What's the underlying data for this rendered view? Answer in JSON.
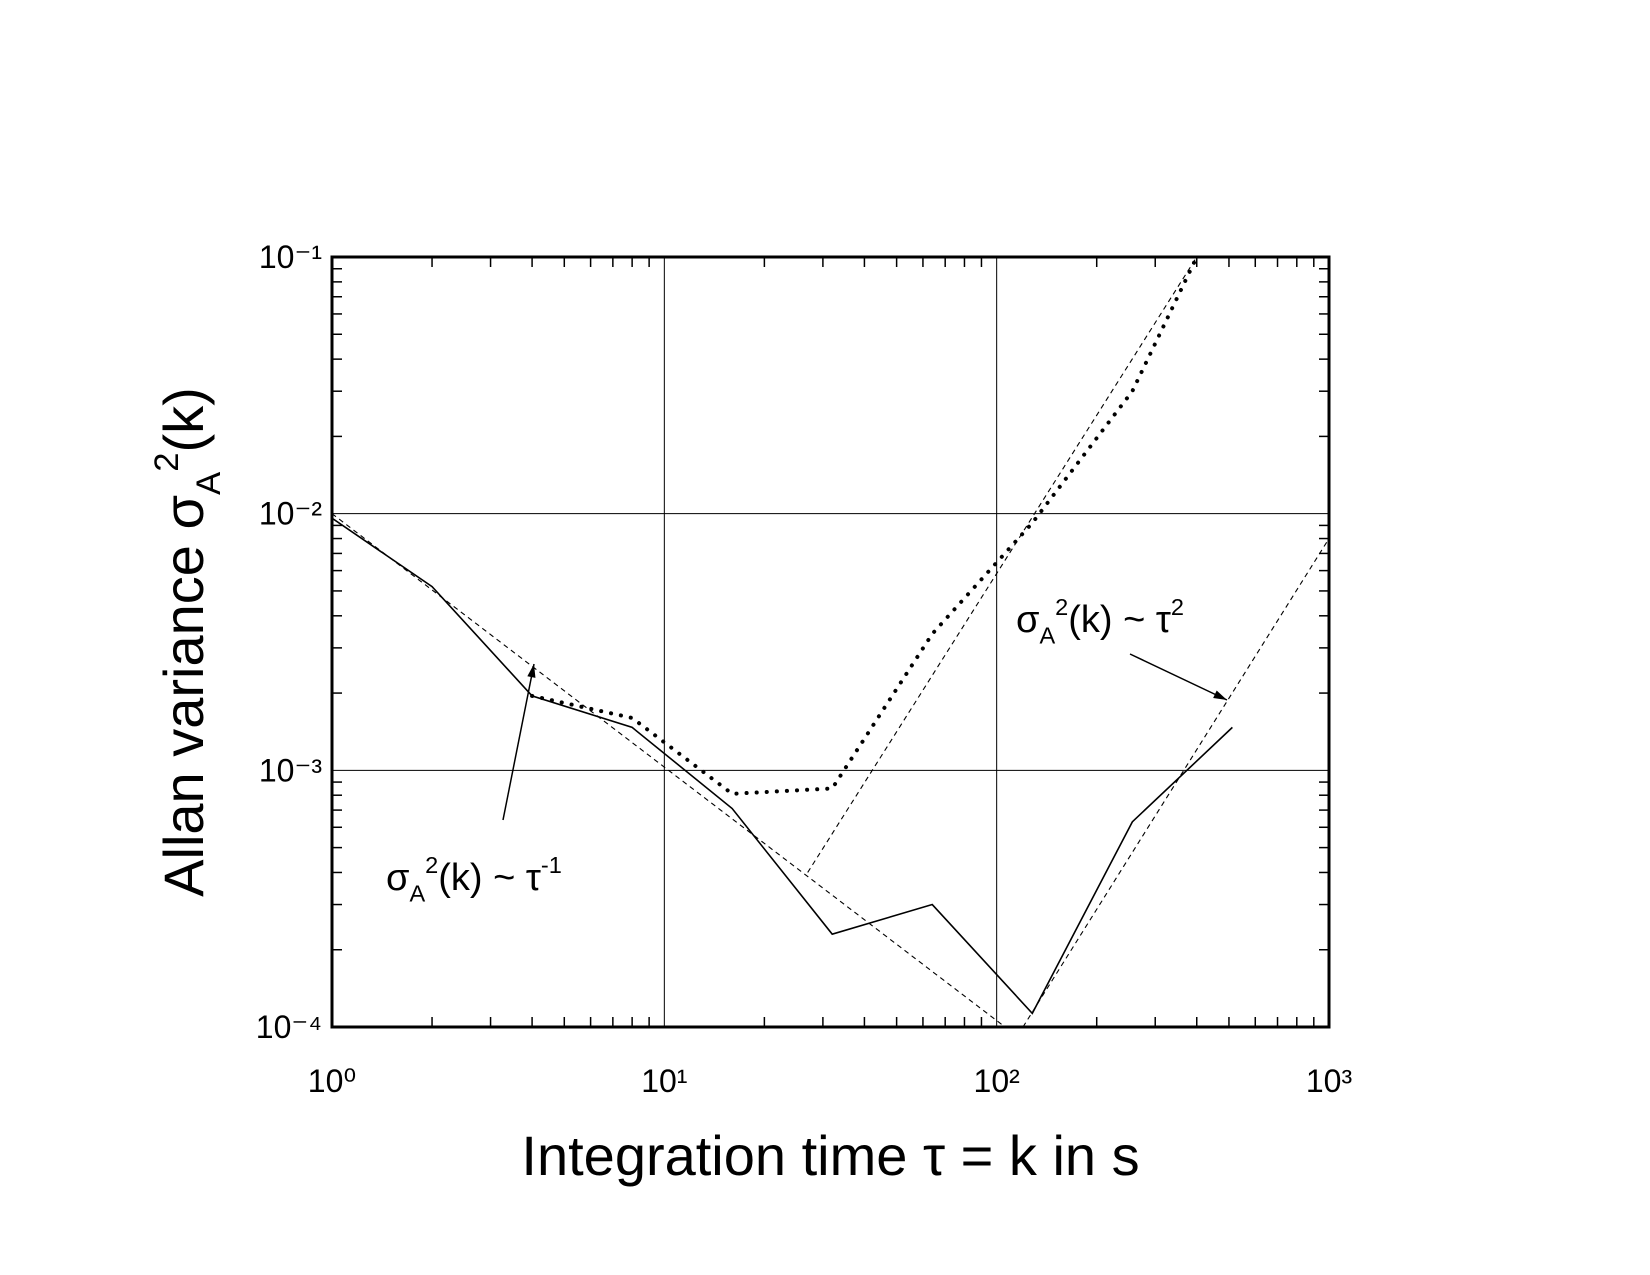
{
  "chart_data": {
    "type": "line",
    "xlabel_parts": [
      "Integration time τ = k in s"
    ],
    "ylabel_parts": [
      "Allan variance σ",
      "A",
      "2",
      "(k)"
    ],
    "annotations": [
      {
        "parts": [
          "σ",
          "A",
          "2",
          "(k) ~ τ",
          "-1"
        ]
      },
      {
        "parts": [
          "σ",
          "A",
          "2",
          "(k) ~ τ",
          "2"
        ]
      }
    ],
    "xscale": "log",
    "yscale": "log",
    "xlim": [
      1,
      1000
    ],
    "ylim": [
      0.0001,
      0.1
    ],
    "xticks": [
      {
        "value": 1,
        "label": "10⁰"
      },
      {
        "value": 10,
        "label": "10¹"
      },
      {
        "value": 100,
        "label": "10²"
      },
      {
        "value": 1000,
        "label": "10³"
      }
    ],
    "yticks": [
      {
        "value": 0.0001,
        "label": "10⁻⁴"
      },
      {
        "value": 0.001,
        "label": "10⁻³"
      },
      {
        "value": 0.01,
        "label": "10⁻²"
      },
      {
        "value": 0.1,
        "label": "10⁻¹"
      }
    ],
    "grid": true,
    "minor_ticks": true,
    "series": [
      {
        "color": "#000000",
        "style": "solid",
        "x": [
          1,
          2,
          4,
          8,
          16,
          32,
          64,
          128,
          256,
          512
        ],
        "values": [
          0.0096,
          0.0052,
          0.00195,
          0.00147,
          0.00071,
          0.00023,
          0.0003,
          0.000113,
          0.00063,
          0.00147
        ]
      },
      {
        "color": "#000000",
        "style": "dotted",
        "x": [
          4,
          8,
          16,
          32,
          64,
          128,
          256,
          400
        ],
        "values": [
          0.00195,
          0.0016,
          0.00081,
          0.00085,
          0.0034,
          0.0092,
          0.03,
          0.1
        ]
      },
      {
        "color": "#000000",
        "style": "dashed",
        "x": [
          1,
          106
        ],
        "values": [
          0.01,
          0.0001
        ]
      },
      {
        "color": "#000000",
        "style": "dashed",
        "x": [
          27,
          400
        ],
        "values": [
          0.0004,
          0.1
        ]
      },
      {
        "color": "#000000",
        "style": "dashed",
        "x": [
          120,
          1000
        ],
        "values": [
          0.0001,
          0.008
        ]
      }
    ]
  }
}
